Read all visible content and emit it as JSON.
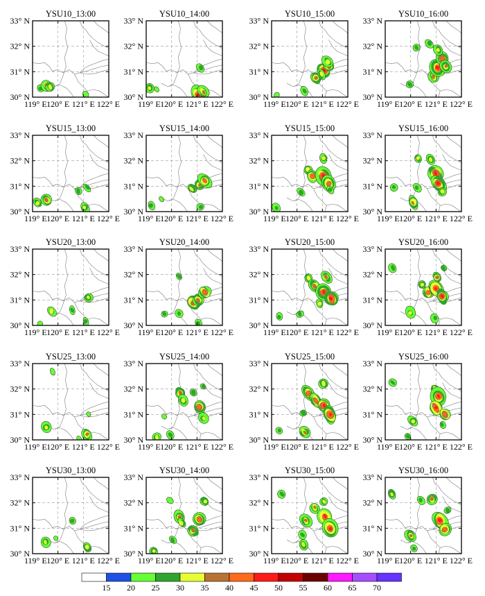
{
  "chart_data": {
    "type": "heatmap",
    "description_rows": [
      "YSU10",
      "YSU15",
      "YSU20",
      "YSU25",
      "YSU30"
    ],
    "description_cols": [
      "13:00",
      "14:00",
      "15:00",
      "16:00"
    ],
    "panel_titles": [
      [
        "YSU10_13:00",
        "YSU10_14:00",
        "YSU10_15:00",
        "YSU10_16:00"
      ],
      [
        "YSU15_13:00",
        "YSU15_14:00",
        "YSU15_15:00",
        "YSU15_16:00"
      ],
      [
        "YSU20_13:00",
        "YSU20_14:00",
        "YSU20_15:00",
        "YSU20_16:00"
      ],
      [
        "YSU25_13:00",
        "YSU25_14:00",
        "YSU25_15:00",
        "YSU25_16:00"
      ],
      [
        "YSU30_13:00",
        "YSU30_14:00",
        "YSU30_15:00",
        "YSU30_16:00"
      ]
    ],
    "x_ticks": [
      "119° E",
      "120° E",
      "121° E",
      "122° E"
    ],
    "y_ticks": [
      "30° N",
      "31° N",
      "32° N",
      "33° N"
    ],
    "xlim": [
      119,
      122
    ],
    "ylim": [
      30,
      33
    ],
    "grid": true,
    "colorbar": {
      "levels": [
        15,
        20,
        25,
        30,
        35,
        40,
        45,
        50,
        55,
        60,
        65,
        70
      ],
      "colors": [
        "#ffffff",
        "#1f4fe6",
        "#66ff33",
        "#2fa52f",
        "#e6ff33",
        "#b87333",
        "#ff6b1a",
        "#ff1a1a",
        "#c40000",
        "#6b0000",
        "#ff1aff",
        "#a64dff",
        "#6633ff"
      ]
    },
    "panels": [
      [
        {
          "cells": [
            [
              119.3,
              30.35,
              2
            ],
            [
              119.55,
              30.45,
              4
            ],
            [
              119.7,
              30.4,
              3
            ],
            [
              121.1,
              30.1,
              1
            ]
          ]
        },
        {
          "cells": [
            [
              119.15,
              30.35,
              3
            ],
            [
              119.4,
              30.3,
              1
            ],
            [
              121.05,
              30.1,
              6
            ],
            [
              121.25,
              30.2,
              4
            ],
            [
              121.15,
              31.15,
              2
            ]
          ]
        },
        {
          "cells": [
            [
              120.3,
              30.25,
              2
            ],
            [
              120.75,
              30.75,
              4
            ],
            [
              121.05,
              31.05,
              6
            ],
            [
              121.25,
              31.25,
              5
            ],
            [
              121.2,
              31.4,
              3
            ],
            [
              120.95,
              30.9,
              3
            ],
            [
              119.2,
              30.1,
              1
            ]
          ]
        },
        {
          "cells": [
            [
              119.95,
              30.5,
              2
            ],
            [
              120.25,
              31.95,
              2
            ],
            [
              120.75,
              32.1,
              2
            ],
            [
              120.9,
              30.8,
              4
            ],
            [
              121.05,
              31.15,
              6
            ],
            [
              121.25,
              31.5,
              5
            ],
            [
              121.4,
              31.2,
              4
            ],
            [
              121.1,
              31.85,
              3
            ]
          ]
        }
      ],
      [
        {
          "cells": [
            [
              119.2,
              30.35,
              3
            ],
            [
              119.55,
              30.45,
              4
            ],
            [
              120.8,
              30.8,
              2
            ],
            [
              121.05,
              30.15,
              3
            ],
            [
              121.15,
              30.95,
              2
            ]
          ]
        },
        {
          "cells": [
            [
              119.6,
              30.5,
              1
            ],
            [
              119.2,
              30.25,
              2
            ],
            [
              120.8,
              30.9,
              3
            ],
            [
              121.1,
              31.05,
              4
            ],
            [
              121.3,
              31.2,
              5
            ],
            [
              121.15,
              30.2,
              2
            ]
          ]
        },
        {
          "cells": [
            [
              120.45,
              31.65,
              3
            ],
            [
              120.6,
              31.4,
              5
            ],
            [
              121.05,
              31.4,
              6
            ],
            [
              121.25,
              31.1,
              5
            ],
            [
              121.05,
              32.1,
              3
            ],
            [
              120.15,
              30.75,
              2
            ],
            [
              119.2,
              30.15,
              2
            ],
            [
              121.3,
              30.85,
              2
            ]
          ]
        },
        {
          "cells": [
            [
              120.1,
              30.35,
              4
            ],
            [
              120.3,
              32.1,
              3
            ],
            [
              120.8,
              32.05,
              3
            ],
            [
              121.0,
              31.5,
              6
            ],
            [
              121.1,
              31.1,
              6
            ],
            [
              121.25,
              30.8,
              3
            ],
            [
              119.35,
              30.95,
              2
            ],
            [
              120.25,
              30.95,
              2
            ]
          ]
        }
      ],
      [
        {
          "cells": [
            [
              119.75,
              30.55,
              3
            ],
            [
              120.55,
              30.6,
              2
            ],
            [
              121.1,
              30.15,
              2
            ],
            [
              121.2,
              31.1,
              3
            ],
            [
              119.3,
              30.05,
              1
            ]
          ]
        },
        {
          "cells": [
            [
              120.3,
              31.95,
              2
            ],
            [
              120.85,
              30.9,
              5
            ],
            [
              121.05,
              31.0,
              4
            ],
            [
              121.3,
              31.3,
              5
            ],
            [
              120.3,
              30.45,
              2
            ],
            [
              119.7,
              30.45,
              2
            ],
            [
              121.05,
              30.1,
              2
            ]
          ]
        },
        {
          "cells": [
            [
              120.45,
              31.85,
              3
            ],
            [
              120.7,
              31.55,
              4
            ],
            [
              121.05,
              31.3,
              6
            ],
            [
              121.35,
              31.05,
              6
            ],
            [
              121.15,
              31.9,
              4
            ],
            [
              119.3,
              30.35,
              2
            ],
            [
              120.1,
              30.45,
              2
            ],
            [
              120.9,
              30.85,
              3
            ]
          ]
        },
        {
          "cells": [
            [
              120.0,
              30.5,
              3
            ],
            [
              119.3,
              32.25,
              2
            ],
            [
              120.45,
              31.6,
              3
            ],
            [
              120.7,
              31.3,
              5
            ],
            [
              121.0,
              31.45,
              6
            ],
            [
              121.25,
              31.15,
              6
            ],
            [
              121.05,
              31.9,
              4
            ],
            [
              121.3,
              32.25,
              2
            ],
            [
              120.95,
              30.3,
              2
            ]
          ]
        }
      ],
      [
        {
          "cells": [
            [
              119.55,
              30.5,
              3
            ],
            [
              120.85,
              30.05,
              1
            ],
            [
              121.15,
              30.2,
              4
            ],
            [
              119.8,
              32.7,
              1
            ],
            [
              121.2,
              31.0,
              1
            ]
          ]
        },
        {
          "cells": [
            [
              120.35,
              31.85,
              4
            ],
            [
              120.45,
              31.55,
              3
            ],
            [
              121.1,
              31.3,
              5
            ],
            [
              121.25,
              30.85,
              3
            ],
            [
              119.4,
              30.1,
              3
            ],
            [
              119.95,
              30.2,
              2
            ],
            [
              120.85,
              31.85,
              2
            ],
            [
              121.25,
              32.1,
              2
            ],
            [
              119.7,
              30.9,
              1
            ]
          ]
        },
        {
          "cells": [
            [
              120.3,
              30.3,
              4
            ],
            [
              120.45,
              31.85,
              5
            ],
            [
              120.75,
              31.55,
              5
            ],
            [
              121.05,
              31.35,
              6
            ],
            [
              121.3,
              31.0,
              6
            ],
            [
              121.05,
              32.2,
              3
            ],
            [
              119.3,
              30.35,
              2
            ],
            [
              120.25,
              31.05,
              2
            ]
          ]
        },
        {
          "cells": [
            [
              120.1,
              30.75,
              3
            ],
            [
              119.3,
              32.25,
              2
            ],
            [
              120.95,
              32.0,
              3
            ],
            [
              121.1,
              31.7,
              6
            ],
            [
              121.0,
              31.25,
              6
            ],
            [
              121.35,
              31.0,
              5
            ],
            [
              119.9,
              30.15,
              2
            ],
            [
              121.25,
              30.6,
              2
            ]
          ]
        }
      ],
      [
        {
          "cells": [
            [
              119.5,
              30.45,
              3
            ],
            [
              120.55,
              31.3,
              2
            ],
            [
              121.15,
              30.25,
              3
            ],
            [
              119.9,
              30.6,
              1
            ]
          ]
        },
        {
          "cells": [
            [
              120.3,
              31.45,
              4
            ],
            [
              120.4,
              31.2,
              3
            ],
            [
              121.1,
              31.35,
              5
            ],
            [
              121.3,
              32.05,
              3
            ],
            [
              120.85,
              30.9,
              4
            ],
            [
              119.3,
              30.1,
              3
            ],
            [
              120.05,
              30.55,
              2
            ],
            [
              119.95,
              32.1,
              1
            ]
          ]
        },
        {
          "cells": [
            [
              120.25,
              30.35,
              3
            ],
            [
              120.35,
              31.3,
              4
            ],
            [
              120.7,
              31.8,
              4
            ],
            [
              121.1,
              31.45,
              6
            ],
            [
              121.3,
              31.0,
              6
            ],
            [
              121.05,
              32.05,
              3
            ],
            [
              119.4,
              32.35,
              2
            ],
            [
              120.2,
              30.75,
              2
            ]
          ]
        },
        {
          "cells": [
            [
              119.25,
              32.35,
              3
            ],
            [
              120.0,
              30.7,
              4
            ],
            [
              120.85,
              32.15,
              4
            ],
            [
              121.15,
              31.3,
              6
            ],
            [
              121.35,
              30.95,
              5
            ],
            [
              120.4,
              32.1,
              2
            ],
            [
              120.15,
              30.2,
              2
            ],
            [
              121.45,
              31.7,
              2
            ]
          ]
        }
      ]
    ]
  }
}
